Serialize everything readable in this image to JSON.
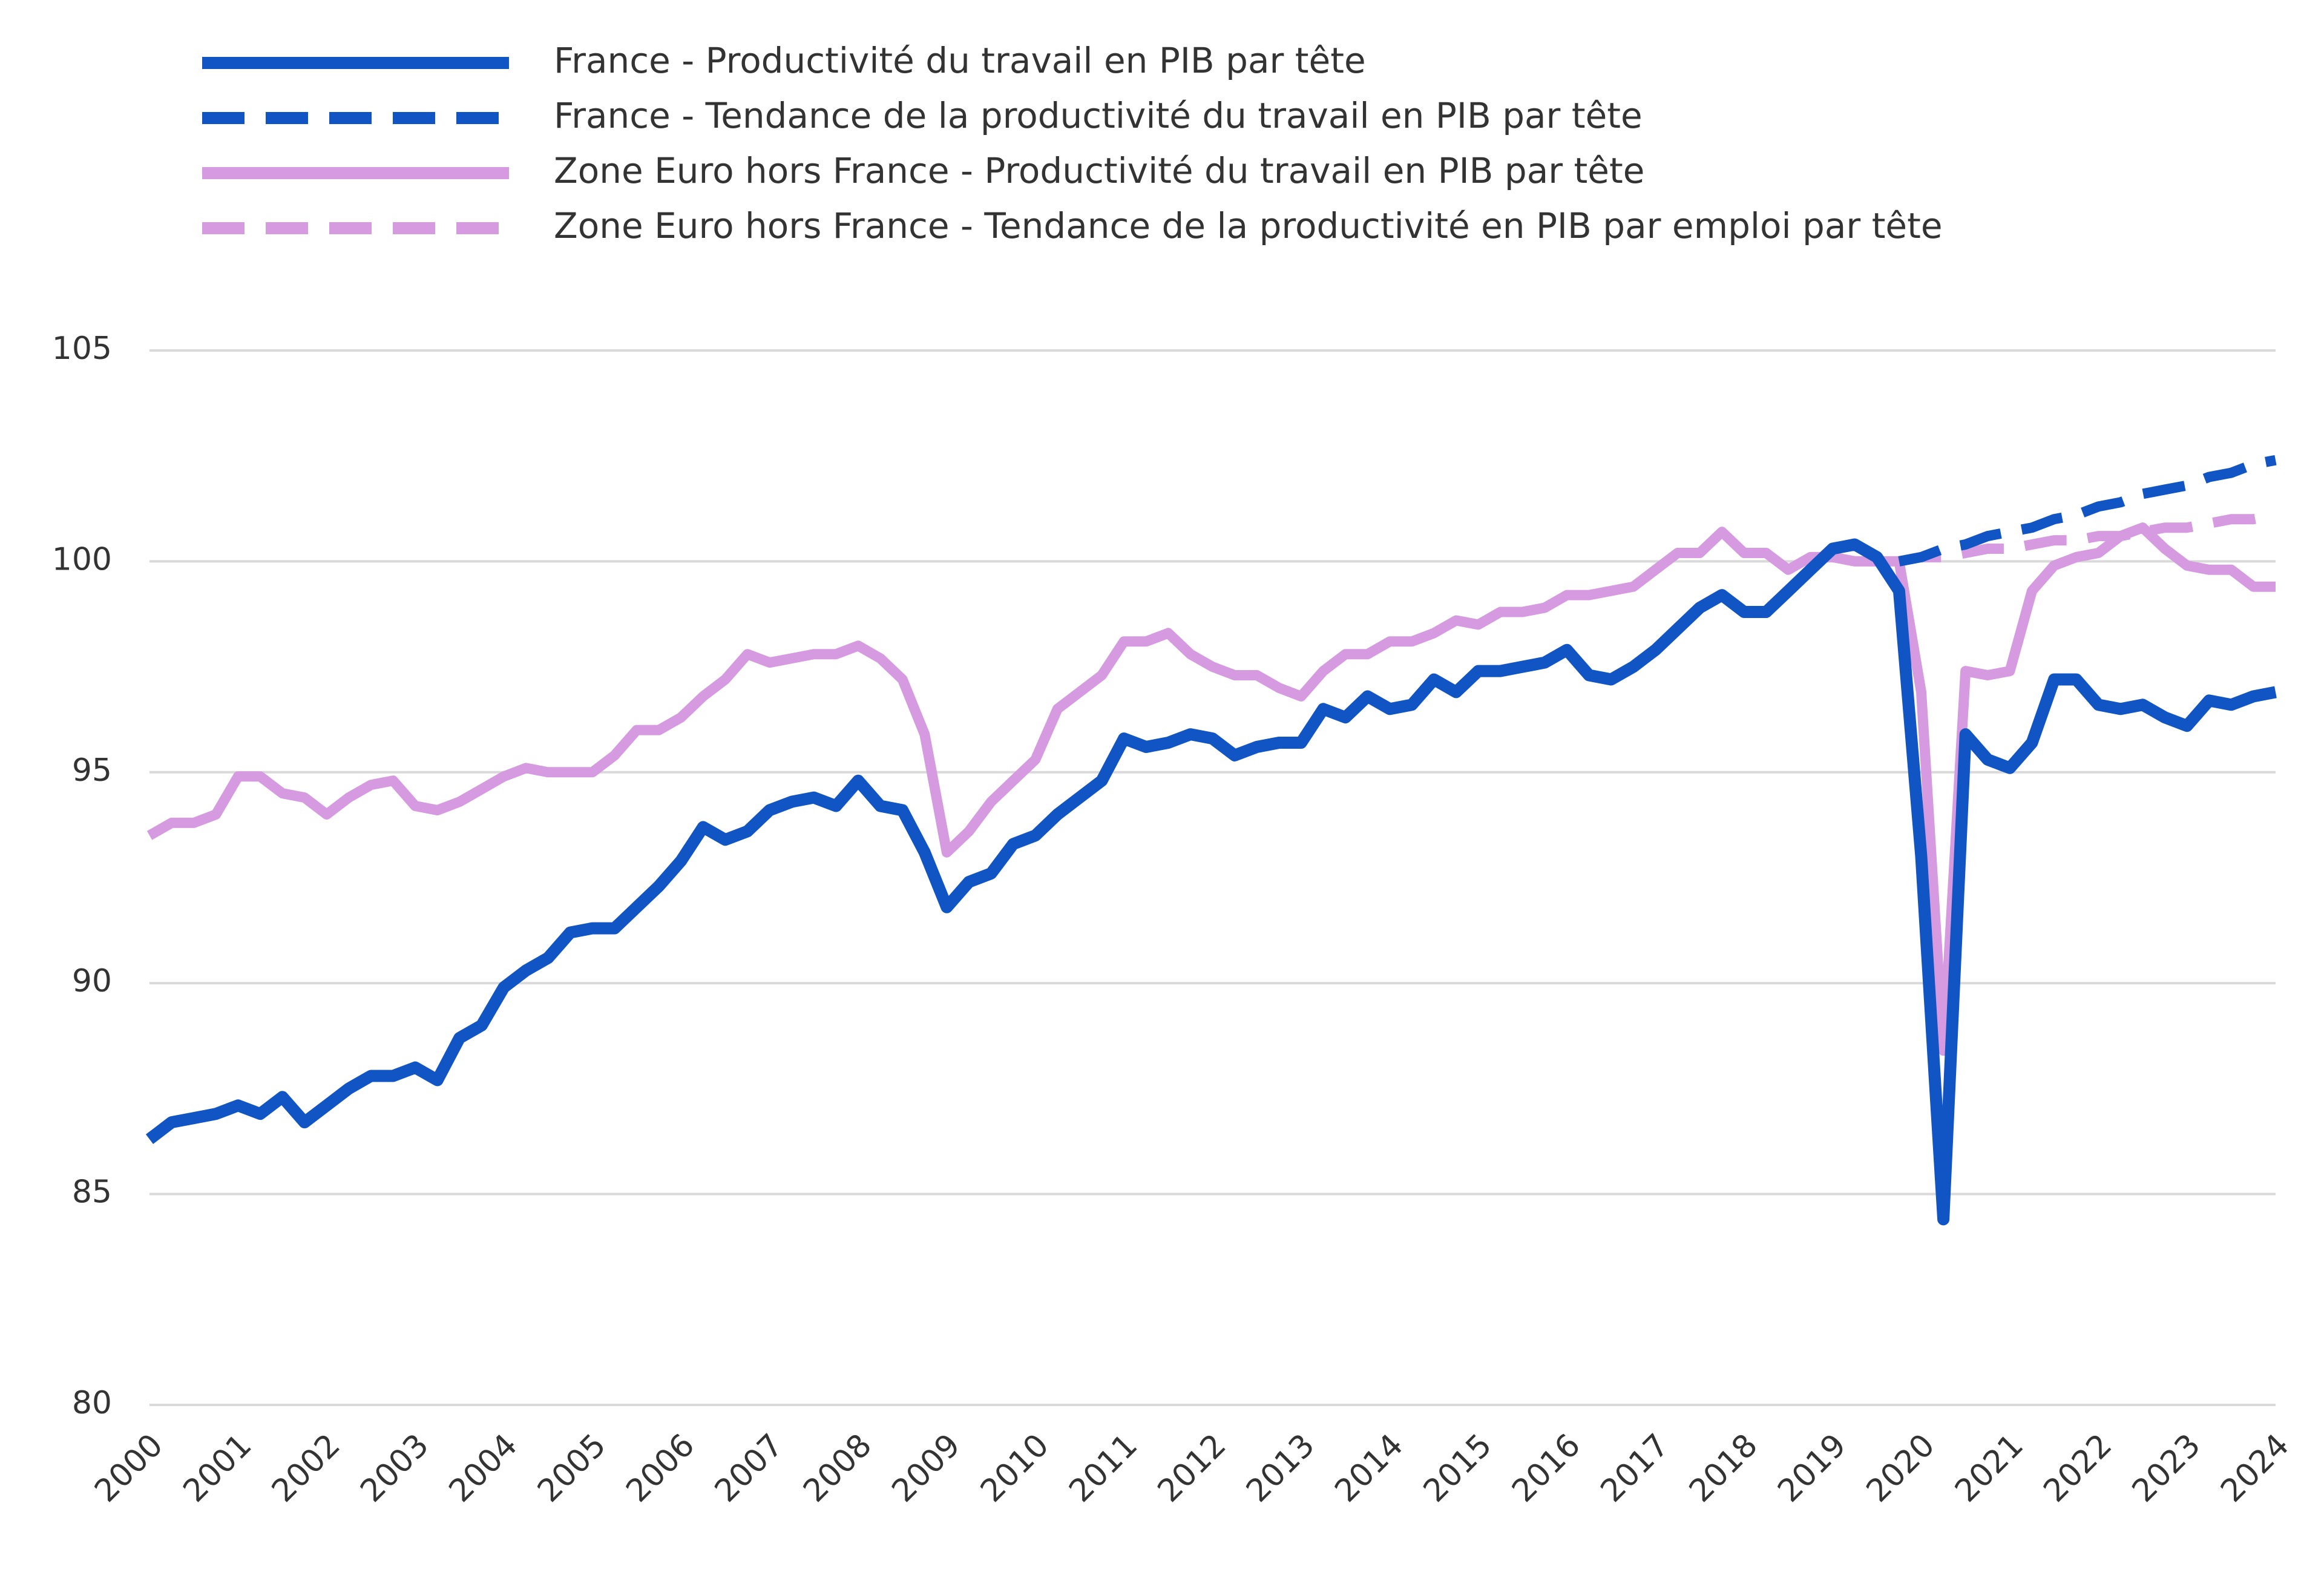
{
  "chart_data": {
    "type": "line",
    "categories": [
      "2000",
      null,
      null,
      null,
      "2001",
      null,
      null,
      null,
      "2002",
      null,
      null,
      null,
      "2003",
      null,
      null,
      null,
      "2004",
      null,
      null,
      null,
      "2005",
      null,
      null,
      null,
      "2006",
      null,
      null,
      null,
      "2007",
      null,
      null,
      null,
      "2008",
      null,
      null,
      null,
      "2009",
      null,
      null,
      null,
      "2010",
      null,
      null,
      null,
      "2011",
      null,
      null,
      null,
      "2012",
      null,
      null,
      null,
      "2013",
      null,
      null,
      null,
      "2014",
      null,
      null,
      null,
      "2015",
      null,
      null,
      null,
      "2016",
      null,
      null,
      null,
      "2017",
      null,
      null,
      null,
      "2018",
      null,
      null,
      null,
      "2019",
      null,
      null,
      null,
      "2020",
      null,
      null,
      null,
      "2021",
      null,
      null,
      null,
      "2022",
      null,
      null,
      null,
      "2023",
      null,
      null,
      null,
      "2024"
    ],
    "series": [
      {
        "name": "France - Productivité du travail en PIB par tête",
        "color": "#1155c4",
        "dashed": false,
        "values": [
          86.3,
          86.7,
          86.8,
          86.9,
          87.1,
          86.9,
          87.3,
          86.7,
          87.1,
          87.5,
          87.8,
          87.8,
          88.0,
          87.7,
          88.7,
          89.0,
          89.9,
          90.3,
          90.6,
          91.2,
          91.3,
          91.3,
          91.8,
          92.3,
          92.9,
          93.7,
          93.4,
          93.6,
          94.1,
          94.3,
          94.4,
          94.2,
          94.8,
          94.2,
          94.1,
          93.1,
          91.8,
          92.4,
          92.6,
          93.3,
          93.5,
          94.0,
          94.4,
          94.8,
          95.8,
          95.6,
          95.7,
          95.9,
          95.8,
          95.4,
          95.6,
          95.7,
          95.7,
          96.5,
          96.3,
          96.8,
          96.5,
          96.6,
          97.2,
          96.9,
          97.4,
          97.4,
          97.5,
          97.6,
          97.9,
          97.3,
          97.2,
          97.5,
          97.9,
          98.4,
          98.9,
          99.2,
          98.8,
          98.8,
          99.3,
          99.8,
          100.3,
          100.4,
          100.1,
          99.3,
          93.0,
          84.4,
          95.9,
          95.3,
          95.1,
          95.7,
          97.2,
          97.2,
          96.6,
          96.5,
          96.6,
          96.3,
          96.1,
          96.7,
          96.6,
          96.8,
          96.9
        ]
      },
      {
        "name": "France - Tendance de la productivité du travail en PIB par tête",
        "color": "#1155c4",
        "dashed": true,
        "values": [
          null,
          null,
          null,
          null,
          null,
          null,
          null,
          null,
          null,
          null,
          null,
          null,
          null,
          null,
          null,
          null,
          null,
          null,
          null,
          null,
          null,
          null,
          null,
          null,
          null,
          null,
          null,
          null,
          null,
          null,
          null,
          null,
          null,
          null,
          null,
          null,
          null,
          null,
          null,
          null,
          null,
          null,
          null,
          null,
          null,
          null,
          null,
          null,
          null,
          null,
          null,
          null,
          null,
          null,
          null,
          null,
          null,
          null,
          null,
          null,
          null,
          null,
          null,
          null,
          null,
          null,
          null,
          null,
          null,
          null,
          null,
          null,
          null,
          null,
          null,
          null,
          null,
          null,
          null,
          100.0,
          100.1,
          100.3,
          100.4,
          100.6,
          100.7,
          100.8,
          101.0,
          101.1,
          101.3,
          101.4,
          101.6,
          101.7,
          101.8,
          102.0,
          102.1,
          102.3,
          102.4
        ]
      },
      {
        "name": "Zone Euro hors France - Productivité du travail en PIB par tête",
        "color": "#d69ae0",
        "dashed": false,
        "values": [
          93.5,
          93.8,
          93.8,
          94.0,
          94.9,
          94.9,
          94.5,
          94.4,
          94.0,
          94.4,
          94.7,
          94.8,
          94.2,
          94.1,
          94.3,
          94.6,
          94.9,
          95.1,
          95.0,
          95.0,
          95.0,
          95.4,
          96.0,
          96.0,
          96.3,
          96.8,
          97.2,
          97.8,
          97.6,
          97.7,
          97.8,
          97.8,
          98.0,
          97.7,
          97.2,
          95.9,
          93.1,
          93.6,
          94.3,
          94.8,
          95.3,
          96.5,
          96.9,
          97.3,
          98.1,
          98.1,
          98.3,
          97.8,
          97.5,
          97.3,
          97.3,
          97.0,
          96.8,
          97.4,
          97.8,
          97.8,
          98.1,
          98.1,
          98.3,
          98.6,
          98.5,
          98.8,
          98.8,
          98.9,
          99.2,
          99.2,
          99.3,
          99.4,
          99.8,
          100.2,
          100.2,
          100.7,
          100.2,
          100.2,
          99.8,
          100.1,
          100.1,
          100.0,
          100.0,
          100.0,
          96.9,
          88.4,
          97.4,
          97.3,
          97.4,
          99.3,
          99.9,
          100.1,
          100.2,
          100.6,
          100.8,
          100.3,
          99.9,
          99.8,
          99.8,
          99.4,
          99.4
        ]
      },
      {
        "name": "Zone Euro hors France - Tendance de la productivité en PIB par emploi par tête",
        "color": "#d69ae0",
        "dashed": true,
        "values": [
          null,
          null,
          null,
          null,
          null,
          null,
          null,
          null,
          null,
          null,
          null,
          null,
          null,
          null,
          null,
          null,
          null,
          null,
          null,
          null,
          null,
          null,
          null,
          null,
          null,
          null,
          null,
          null,
          null,
          null,
          null,
          null,
          null,
          null,
          null,
          null,
          null,
          null,
          null,
          null,
          null,
          null,
          null,
          null,
          null,
          null,
          null,
          null,
          null,
          null,
          null,
          null,
          null,
          null,
          null,
          null,
          null,
          null,
          null,
          null,
          null,
          null,
          null,
          null,
          null,
          null,
          null,
          null,
          null,
          null,
          null,
          null,
          null,
          null,
          null,
          null,
          null,
          null,
          null,
          100.0,
          100.1,
          100.1,
          100.2,
          100.3,
          100.3,
          100.4,
          100.5,
          100.5,
          100.6,
          100.6,
          100.7,
          100.8,
          100.8,
          100.9,
          101.0,
          101.0,
          101.1
        ]
      }
    ],
    "ylim": [
      80,
      105
    ],
    "yticks": [
      80,
      85,
      90,
      95,
      100,
      105
    ],
    "grid": true,
    "legend": "top"
  }
}
